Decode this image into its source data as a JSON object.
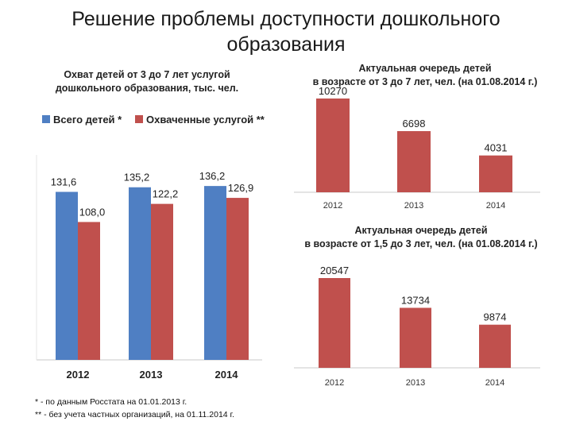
{
  "page": {
    "title_line1": "Решение проблемы доступности дошкольного",
    "title_line2": "образования"
  },
  "colors": {
    "blue": "#4f7fc3",
    "red": "#c0504d",
    "axis": "#c8c8c8"
  },
  "chart_data": [
    {
      "type": "bar",
      "title_line1": "Охват детей от 3 до 7 лет услугой",
      "title_line2": "дошкольного образования, тыс. чел.",
      "legend": "top-left",
      "categories": [
        "2012",
        "2013",
        "2014"
      ],
      "series": [
        {
          "name": "Всего детей *",
          "values": [
            131.6,
            135.2,
            136.2
          ],
          "labels": [
            "131,6",
            "135,2",
            "136,2"
          ],
          "color": "#4f7fc3"
        },
        {
          "name": "Охваченные услугой **",
          "values": [
            108.0,
            122.2,
            126.9
          ],
          "labels": [
            "108,0",
            "122,2",
            "126,9"
          ],
          "color": "#c0504d"
        }
      ]
    },
    {
      "type": "bar",
      "title_line1": "Актуальная очередь детей",
      "title_line2": "в возрасте от 3 до 7 лет, чел. (на 01.08.2014 г.)",
      "categories": [
        "2012",
        "2013",
        "2014"
      ],
      "values": [
        10270,
        6698,
        4031
      ],
      "labels": [
        "10270",
        "6698",
        "4031"
      ],
      "color": "#c0504d"
    },
    {
      "type": "bar",
      "title_line1": "Актуальная очередь детей",
      "title_line2": "в возрасте от 1,5 до 3 лет, чел. (на 01.08.2014 г.)",
      "categories": [
        "2012",
        "2013",
        "2014"
      ],
      "values": [
        20547,
        13734,
        9874
      ],
      "labels": [
        "20547",
        "13734",
        "9874"
      ],
      "color": "#c0504d"
    }
  ],
  "footnotes": [
    "* - по данным Росстата на 01.01.2013 г.",
    "** -  без учета частных организаций, на 01.11.2014 г."
  ]
}
